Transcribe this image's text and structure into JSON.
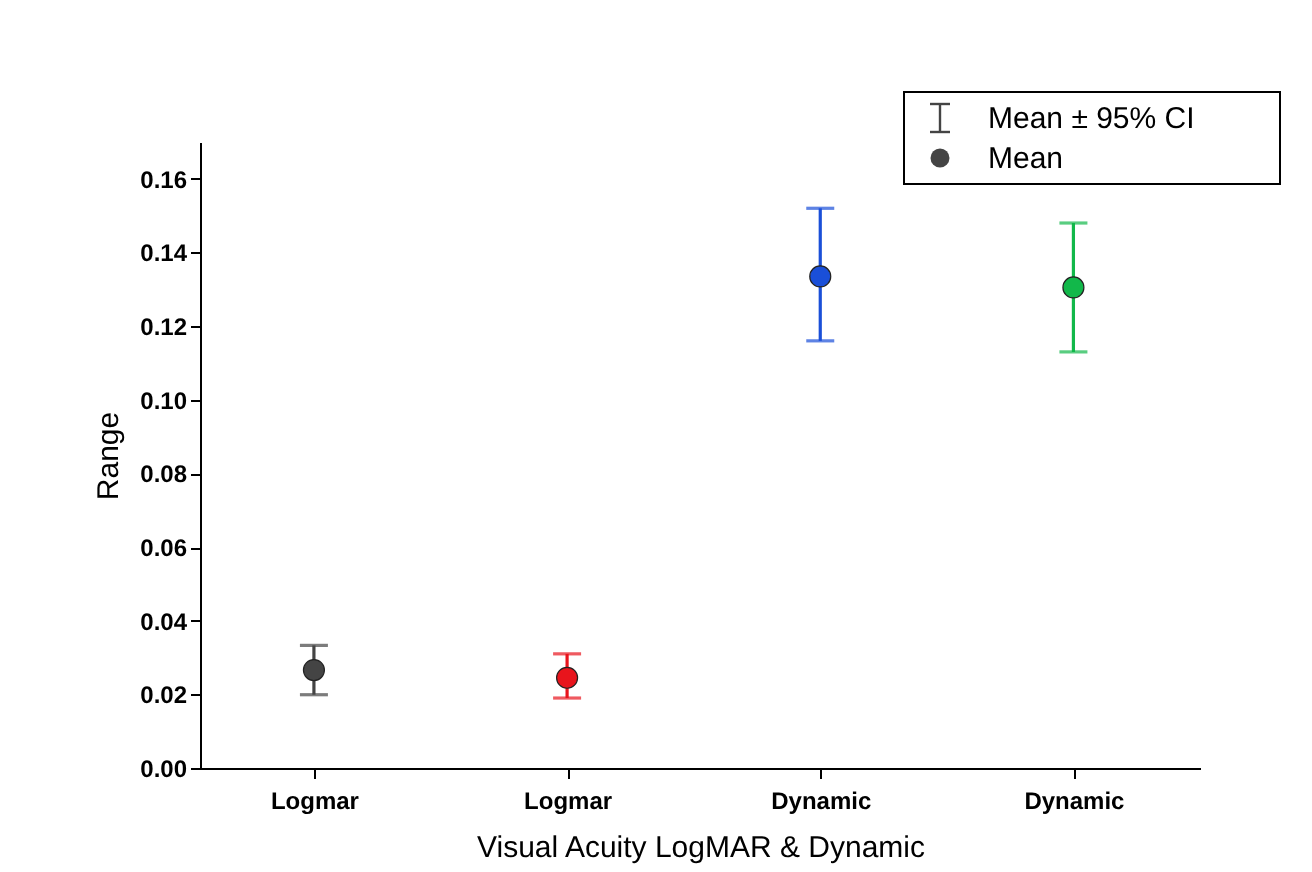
{
  "chart_data": {
    "type": "scatter",
    "xlabel": "Visual Acuity LogMAR & Dynamic",
    "ylabel": "Range",
    "categories": [
      "Logmar",
      "Logmar",
      "Dynamic",
      "Dynamic"
    ],
    "series": [
      {
        "name": "Mean",
        "color": "#444444",
        "colors": [
          "#444444",
          "#e8141c",
          "#1a4fd8",
          "#12b84a"
        ],
        "values": [
          0.0266,
          0.0245,
          0.1335,
          0.1305
        ],
        "errors": [
          [
            0.0199,
            0.0333
          ],
          [
            0.019,
            0.031
          ],
          [
            0.116,
            0.152
          ],
          [
            0.113,
            0.148
          ]
        ]
      }
    ],
    "annotations": [
      "Mean ± 95% CI"
    ],
    "ylim": [
      0,
      0.17
    ],
    "yticks": [
      {
        "value": 0,
        "label": "0.00"
      },
      0.02,
      0.04,
      0.06,
      0.08,
      {
        "value": 0.1,
        "label": "0.10"
      },
      0.12,
      0.14,
      0.16
    ],
    "marker": "circle",
    "legend": "top right",
    "grid": false
  }
}
